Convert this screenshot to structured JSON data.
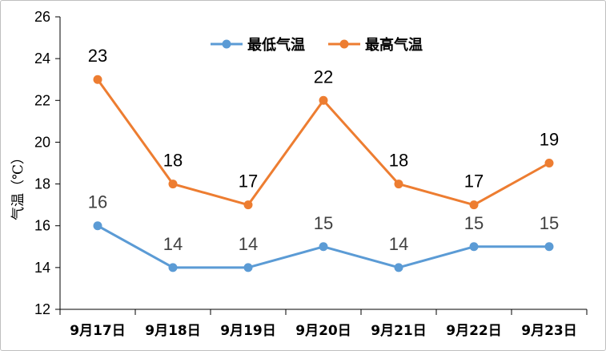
{
  "chart_data": {
    "type": "line",
    "categories": [
      "9月17日",
      "9月18日",
      "9月19日",
      "9月20日",
      "9月21日",
      "9月22日",
      "9月23日"
    ],
    "series": [
      {
        "name": "最低气温",
        "values": [
          16,
          14,
          14,
          15,
          14,
          15,
          15
        ],
        "color": "#5b9bd5"
      },
      {
        "name": "最高气温",
        "values": [
          23,
          18,
          17,
          22,
          18,
          17,
          19
        ],
        "color": "#ed7d31"
      }
    ],
    "ylabel": "气温（℃）",
    "xlabel": "",
    "ylim": [
      12,
      26
    ],
    "yticks": [
      12,
      14,
      16,
      18,
      20,
      22,
      24,
      26
    ],
    "grid": false,
    "legend": "top-center",
    "data_labels": true
  }
}
